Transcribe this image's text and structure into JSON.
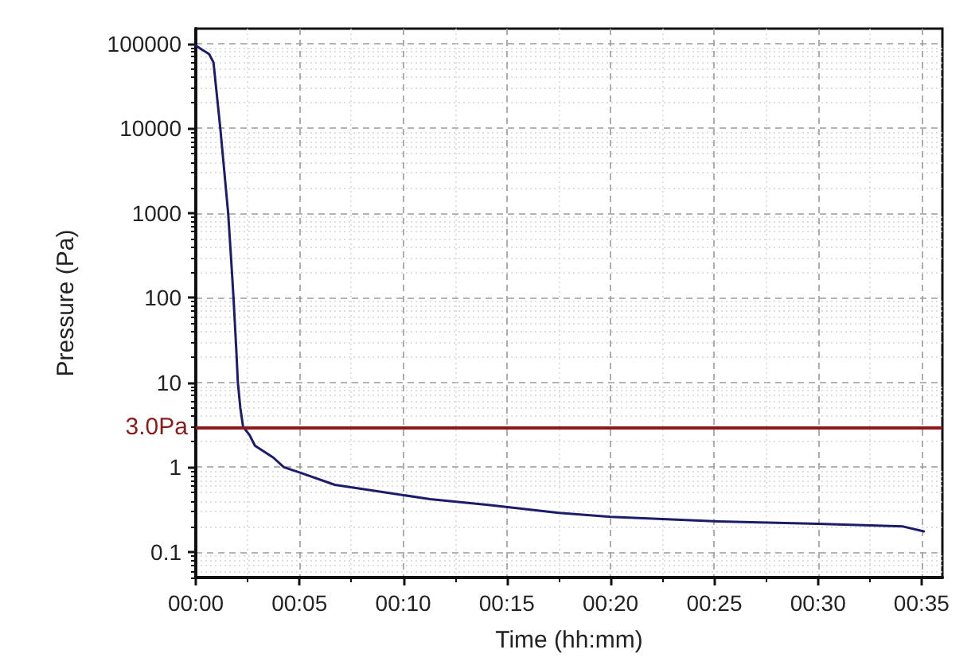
{
  "chart_data": {
    "type": "line",
    "xlabel": "Time (hh:mm)",
    "ylabel": "Pressure (Pa)",
    "x": [
      0,
      0.0043,
      0.0107,
      0.0142,
      0.0197,
      0.026,
      0.0283,
      0.0303,
      0.0325,
      0.0338,
      0.0358,
      0.038,
      0.0432,
      0.0475,
      0.0623,
      0.0708,
      0.0833,
      0.1117,
      0.1542,
      0.1883,
      0.235,
      0.2917,
      0.3333,
      0.42,
      0.5,
      0.5683,
      0.585
    ],
    "series": [
      {
        "color": "#1c1c6b",
        "values": [
          95000,
          86000,
          75000,
          60000,
          10000,
          1000,
          300,
          100,
          25,
          10,
          5,
          3,
          2.4,
          1.8,
          1.3,
          1.0,
          0.87,
          0.62,
          0.5,
          0.42,
          0.36,
          0.29,
          0.26,
          0.23,
          0.215,
          0.2,
          0.175
        ]
      }
    ],
    "xlim": [
      0,
      0.6
    ],
    "xticks": [
      {
        "value": 0,
        "label": "00:00"
      },
      {
        "value": 0.0833,
        "label": "00:05"
      },
      {
        "value": 0.1667,
        "label": "00:10"
      },
      {
        "value": 0.25,
        "label": "00:15"
      },
      {
        "value": 0.3333,
        "label": "00:20"
      },
      {
        "value": 0.4167,
        "label": "00:25"
      },
      {
        "value": 0.5,
        "label": "00:30"
      },
      {
        "value": 0.5833,
        "label": "00:35"
      }
    ],
    "ylim": [
      0.05,
      150000
    ],
    "yticks": [
      0.1,
      1,
      10,
      100,
      1000,
      10000,
      100000
    ],
    "log": true,
    "grid": true,
    "ref_lines": [
      {
        "axis": "y",
        "value": 3,
        "label": "3.0Pa",
        "color": "#8b1a1a"
      }
    ]
  }
}
